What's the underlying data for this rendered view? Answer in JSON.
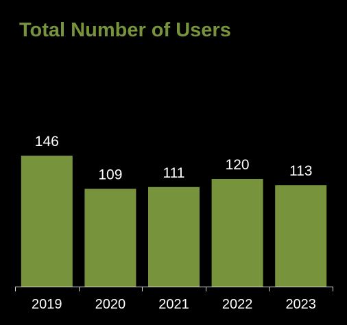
{
  "chart_data": {
    "type": "bar",
    "title": "Total Number of Users",
    "categories": [
      "2019",
      "2020",
      "2021",
      "2022",
      "2023"
    ],
    "values": [
      146,
      109,
      111,
      120,
      113
    ],
    "xlabel": "",
    "ylabel": "",
    "ylim": [
      0,
      146
    ],
    "grid": false,
    "legend": "none",
    "data_labels": true
  },
  "colors": {
    "background": "#000000",
    "bar": "#77933c",
    "title": "#77933c",
    "text": "#ffffff",
    "axis": "#d9d9d9"
  }
}
